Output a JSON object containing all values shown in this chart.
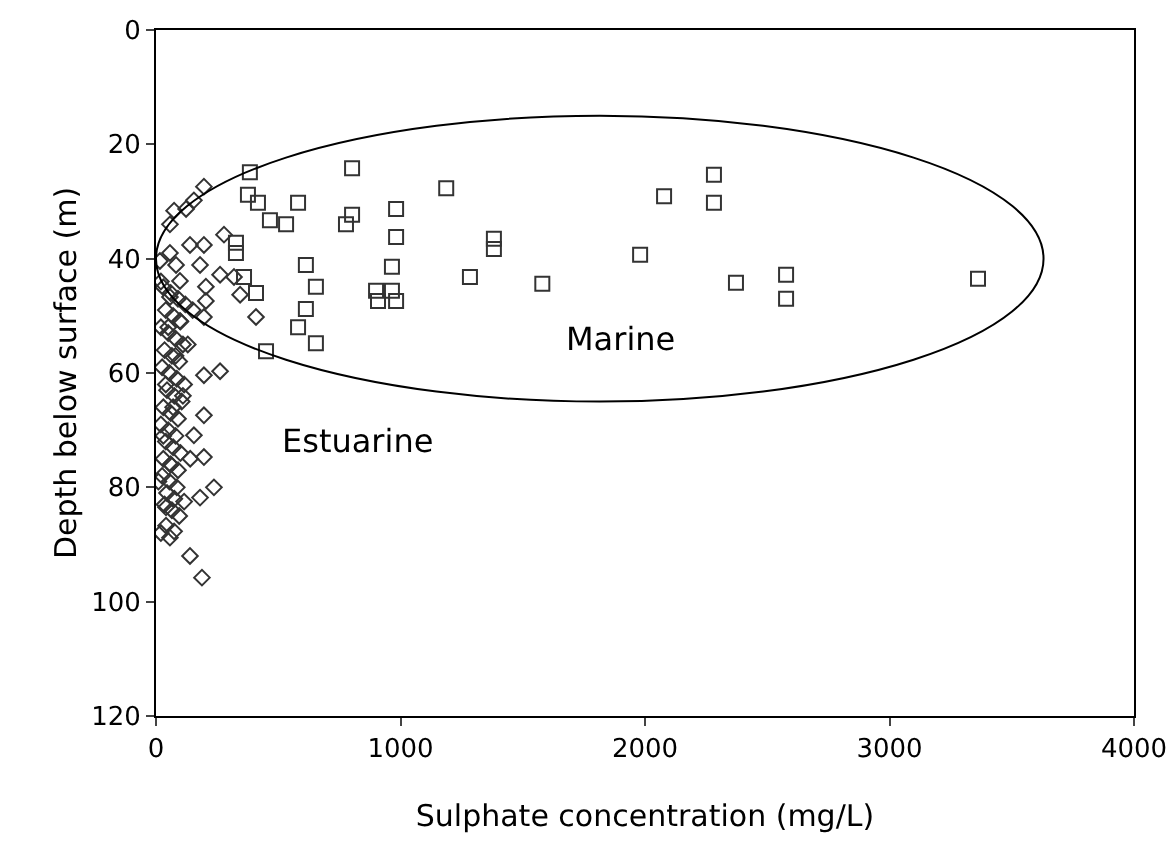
{
  "chart_data": {
    "type": "scatter",
    "xlabel": "Sulphate concentration (mg/L)",
    "ylabel": "Depth below surface (m)",
    "xlim": [
      0,
      4000
    ],
    "xticks": [
      0,
      1000,
      2000,
      3000,
      4000
    ],
    "ylim": [
      120,
      0
    ],
    "yticks": [
      0,
      20,
      40,
      60,
      80,
      100,
      120
    ],
    "grid": false,
    "annotations": [
      "Marine",
      "Estuarine"
    ],
    "series": [
      {
        "marker": "diamond",
        "color": "#333333",
        "x": [
          196,
          155,
          74,
          123,
          57,
          278,
          139,
          196,
          57,
          16,
          82,
          180,
          262,
          319,
          344,
          98,
          204,
          57,
          204,
          409,
          196,
          98,
          30,
          60,
          90,
          120,
          40,
          70,
          100,
          20,
          50,
          80,
          110,
          35,
          65,
          95,
          25,
          55,
          85,
          115,
          45,
          75,
          105,
          30,
          60,
          90,
          20,
          50,
          80,
          40,
          70,
          100,
          30,
          60,
          90,
          25,
          55,
          85,
          45,
          75,
          35,
          65,
          95,
          20,
          50,
          80,
          40,
          70,
          30,
          60,
          262,
          196,
          196,
          155,
          196,
          237,
          180,
          115,
          41,
          41,
          74,
          57,
          139,
          188,
          130,
          150,
          110,
          140,
          20,
          10
        ],
        "values": [
          27.4,
          29.8,
          31.6,
          31.3,
          34,
          35.8,
          37.6,
          37.6,
          39,
          40.4,
          41.1,
          41.1,
          42.8,
          43.2,
          46.3,
          43.9,
          44.9,
          46.7,
          47.4,
          50.2,
          50.2,
          50.9,
          45,
          46,
          47,
          48,
          49,
          50,
          51,
          52,
          53,
          54,
          55,
          56,
          57,
          58,
          59,
          60,
          61,
          62,
          63,
          64,
          65,
          66,
          67,
          68,
          69,
          70,
          71,
          72,
          73,
          74,
          75,
          76,
          77,
          78,
          79,
          80,
          81,
          82,
          83,
          84,
          85,
          44,
          52,
          57,
          62,
          66,
          71,
          76,
          59.7,
          60.4,
          67.4,
          70.9,
          74.7,
          80,
          81.8,
          82.5,
          83.5,
          86.7,
          87.7,
          88.8,
          92,
          95.8,
          55,
          49,
          64,
          75,
          88,
          79
        ]
      },
      {
        "marker": "square",
        "color": "#333333",
        "x": [
          384,
          802,
          1187,
          376,
          417,
          581,
          982,
          466,
          532,
          777,
          802,
          982,
          1382,
          1382,
          327,
          327,
          613,
          965,
          1284,
          360,
          654,
          900,
          965,
          409,
          908,
          982,
          613,
          581,
          654,
          450,
          1580,
          2282,
          2078,
          2282,
          1980,
          2372,
          2577,
          2577,
          3362
        ],
        "values": [
          24.9,
          24.2,
          27.7,
          28.8,
          30.2,
          30.2,
          31.3,
          33.3,
          34,
          34,
          32.3,
          36.2,
          36.5,
          38.3,
          37.2,
          39,
          41.1,
          41.4,
          43.2,
          43.2,
          44.9,
          45.6,
          45.6,
          46,
          47.4,
          47.4,
          48.8,
          52,
          54.8,
          56.2,
          44.4,
          25.3,
          29.1,
          30.2,
          39.3,
          44.2,
          42.8,
          47,
          43.5
        ]
      }
    ]
  }
}
